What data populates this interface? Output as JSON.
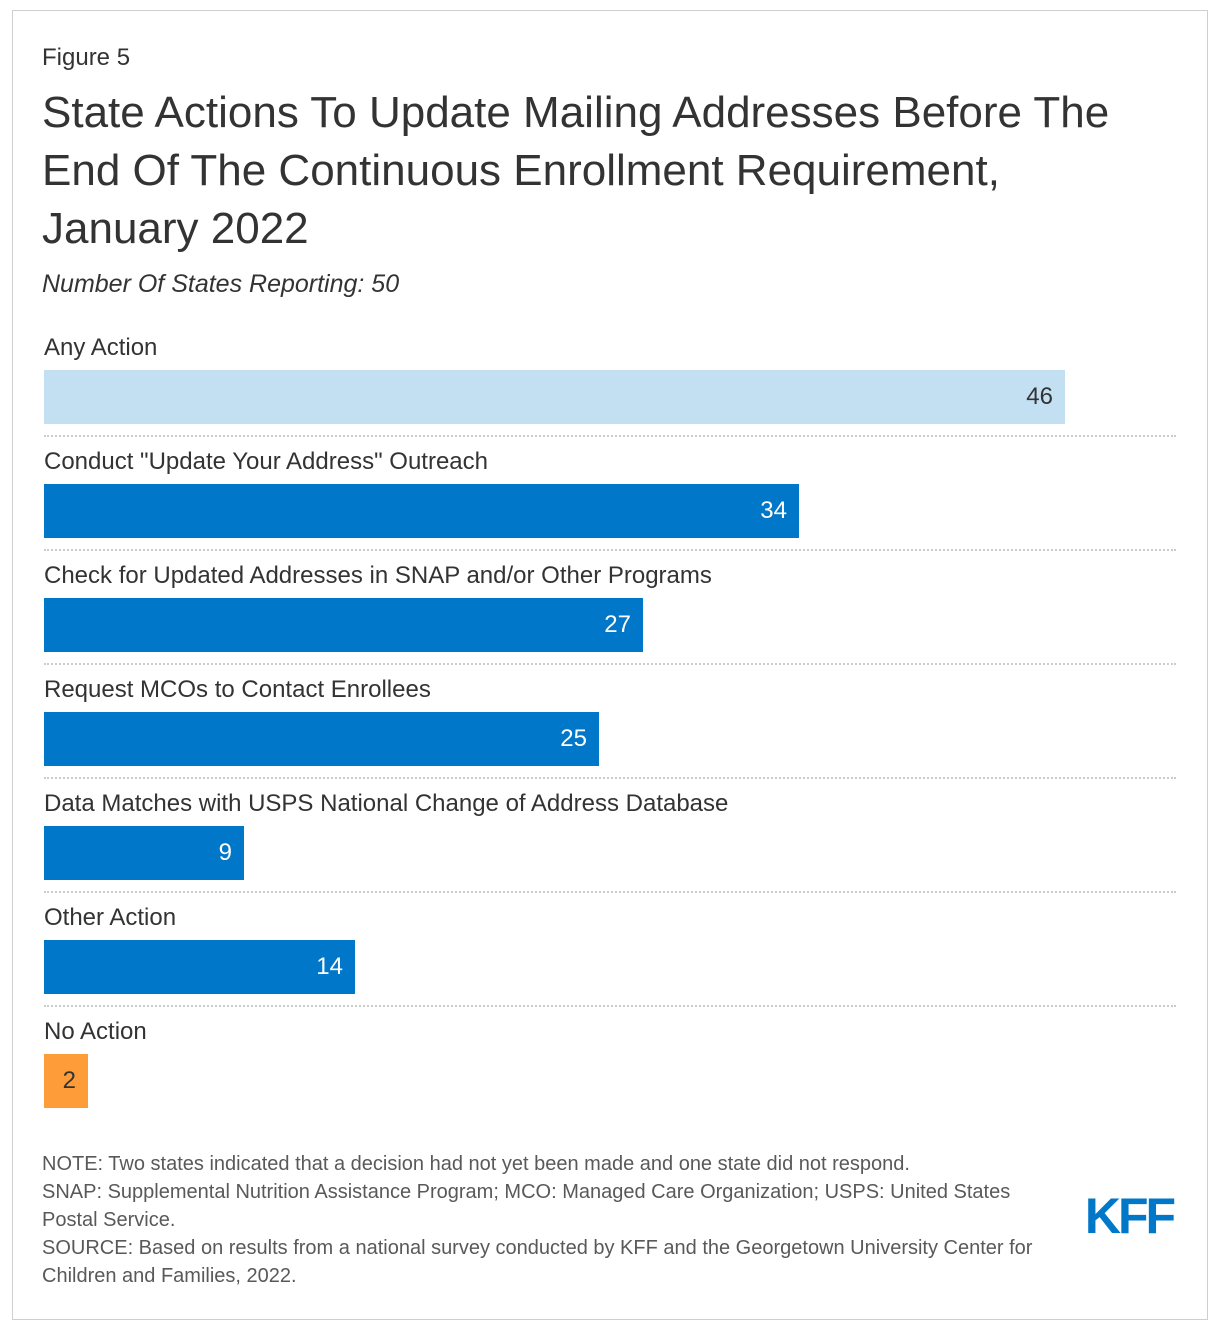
{
  "figure_label": "Figure 5",
  "title": "State Actions To Update Mailing Addresses Before The End Of The Continuous Enrollment Requirement, January 2022",
  "subtitle": "Number Of States Reporting: 50",
  "chart_data": {
    "type": "bar",
    "orientation": "horizontal",
    "title": "State Actions To Update Mailing Addresses Before The End Of The Continuous Enrollment Requirement, January 2022",
    "subtitle": "Number Of States Reporting: 50",
    "categories": [
      "Any Action",
      "Conduct \"Update Your Address\" Outreach",
      "Check for Updated Addresses in SNAP and/or Other Programs",
      "Request MCOs to Contact Enrollees",
      "Data Matches with USPS National Change of Address Database",
      "Other Action",
      "No Action"
    ],
    "values": [
      46,
      34,
      27,
      25,
      9,
      14,
      2
    ],
    "colors": [
      "#c3dff2",
      "#0077c8",
      "#0077c8",
      "#0077c8",
      "#0077c8",
      "#0077c8",
      "#ff9c3a"
    ],
    "value_label_colors": [
      "#333333",
      "#ffffff",
      "#ffffff",
      "#ffffff",
      "#ffffff",
      "#ffffff",
      "#333333"
    ],
    "xlim": [
      0,
      51
    ],
    "xlabel": "",
    "ylabel": "",
    "grid": false,
    "data_labels": true
  },
  "notes": {
    "note": "NOTE: Two states indicated that a decision had not yet been made and one state did not respond.",
    "abbreviations": "SNAP: Supplemental Nutrition Assistance Program; MCO: Managed Care Organization; USPS: United States Postal Service.",
    "source": "SOURCE: Based on results from a national survey conducted by KFF and the Georgetown University Center for Children and Families, 2022."
  },
  "logo": {
    "text": "KFF",
    "color": "#0077c8"
  }
}
